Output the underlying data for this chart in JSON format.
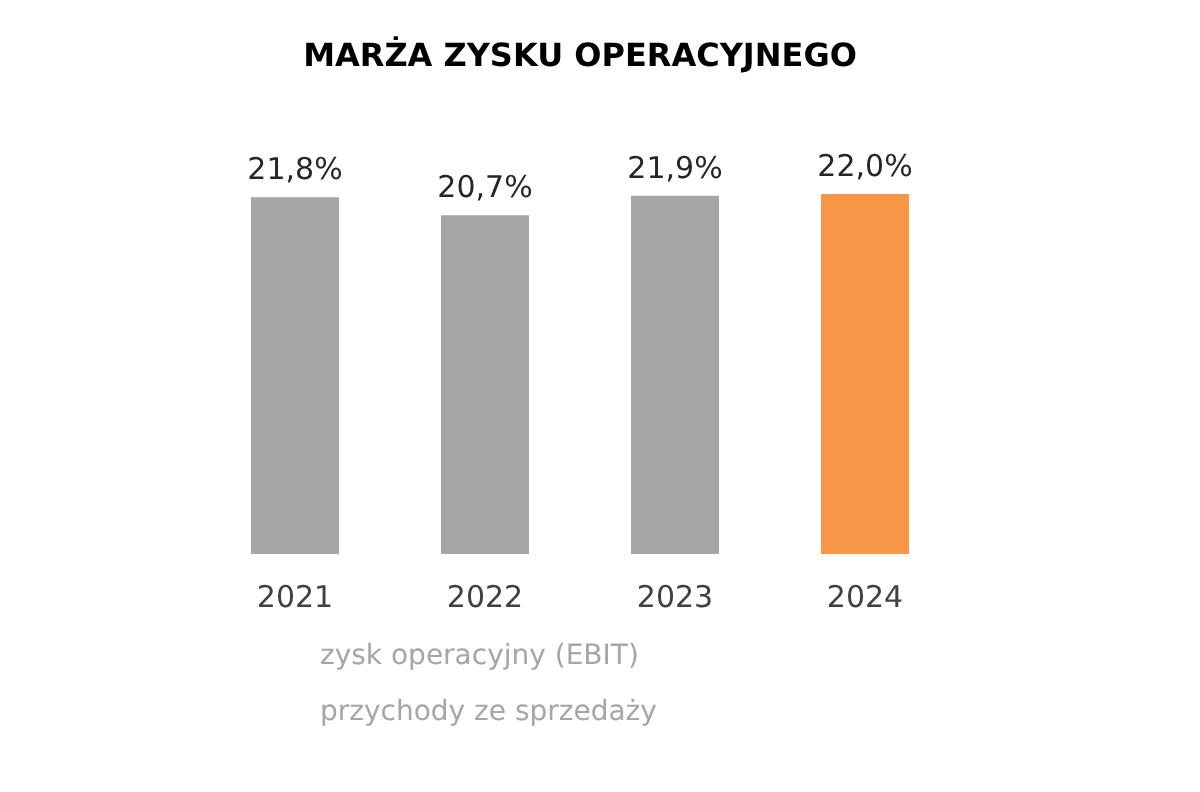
{
  "chart_data": {
    "type": "bar",
    "title": "MARŻA ZYSKU OPERACYJNEGO",
    "categories": [
      "2021",
      "2022",
      "2023",
      "2024"
    ],
    "values": [
      21.8,
      20.7,
      21.9,
      22.0
    ],
    "colors": [
      "#a6a6a6",
      "#a6a6a6",
      "#a6a6a6",
      "#f79646"
    ],
    "value_labels": [
      "21,8%",
      "20,7%",
      "21,9%",
      "22,0%"
    ],
    "ylim": [
      0,
      22.0
    ],
    "annotations": [
      "zysk operacyjny (EBIT)",
      "przychody ze sprzedaży"
    ]
  }
}
